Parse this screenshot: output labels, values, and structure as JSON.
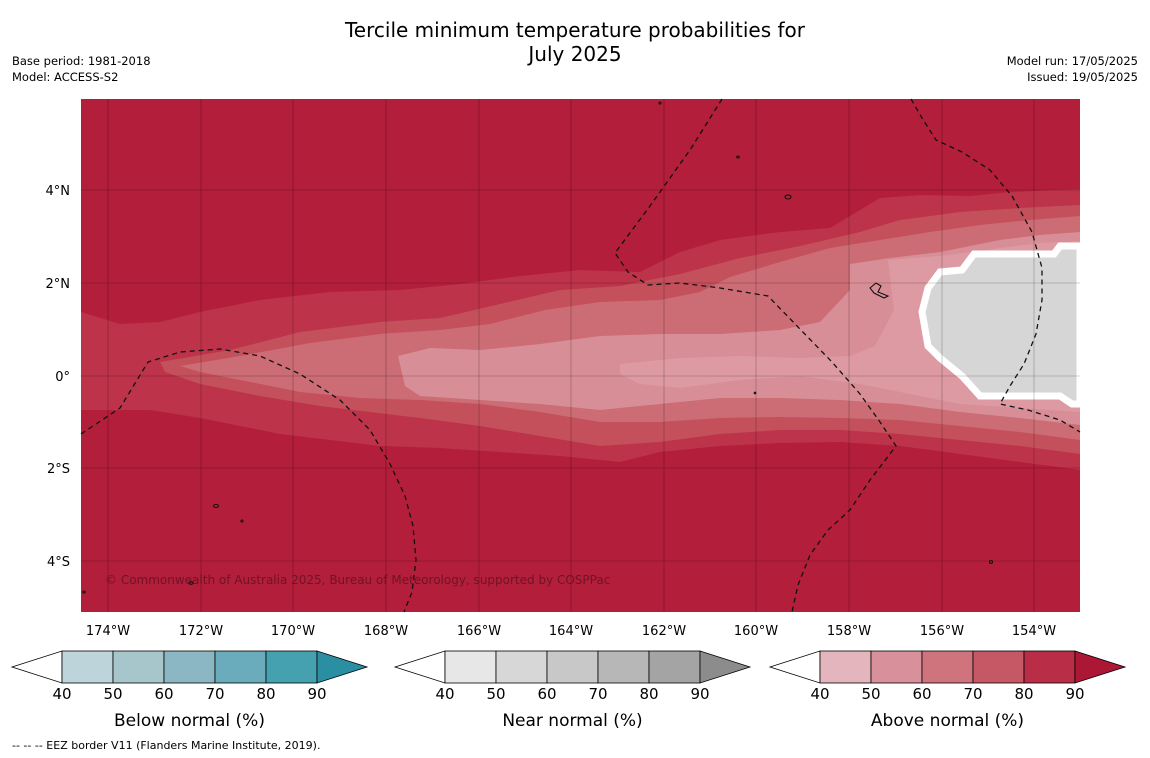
{
  "header": {
    "title_line1": "Tercile minimum temperature probabilities for",
    "title_line2": "July 2025",
    "base_period": "Base period: 1981-2018",
    "model": "Model: ACCESS-S2",
    "model_run": "Model run: 17/05/2025",
    "issued": "Issued: 19/05/2025"
  },
  "map": {
    "lat_labels": [
      "4°N",
      "2°N",
      "0°",
      "2°S",
      "4°S"
    ],
    "lon_labels": [
      "174°W",
      "172°W",
      "170°W",
      "168°W",
      "166°W",
      "164°W",
      "162°W",
      "160°W",
      "158°W",
      "156°W",
      "154°W"
    ],
    "copyright": "© Commonwealth of Australia 2025, Bureau of Meteorology, supported by COSPPac",
    "colors": {
      "above_90": "#b31e3a",
      "above_80": "#bd3349",
      "above_70": "#c4505c",
      "above_60": "#cc6c74",
      "above_50": "#d88e96",
      "near_normal": "#d6d6d6"
    }
  },
  "legends": [
    {
      "label": "Below normal (%)",
      "ticks": [
        "40",
        "50",
        "60",
        "70",
        "80",
        "90"
      ],
      "colors": [
        "#ffffff",
        "#bed4db",
        "#a7c6cc",
        "#8bb7c4",
        "#6aacbb",
        "#45a0b0",
        "#2b8fa3"
      ]
    },
    {
      "label": "Near normal (%)",
      "ticks": [
        "40",
        "50",
        "60",
        "70",
        "80",
        "90"
      ],
      "colors": [
        "#ffffff",
        "#e7e7e7",
        "#d7d7d7",
        "#c8c8c8",
        "#b7b7b7",
        "#a4a4a4",
        "#8c8c8c"
      ]
    },
    {
      "label": "Above normal (%)",
      "ticks": [
        "40",
        "50",
        "60",
        "70",
        "80",
        "90"
      ],
      "colors": [
        "#ffffff",
        "#e4b5bd",
        "#d8919a",
        "#cf747d",
        "#c65866",
        "#b92d47",
        "#ac1735"
      ]
    }
  ],
  "footnote": "--  --  -- EEZ border V11 (Flanders Marine Institute, 2019)."
}
